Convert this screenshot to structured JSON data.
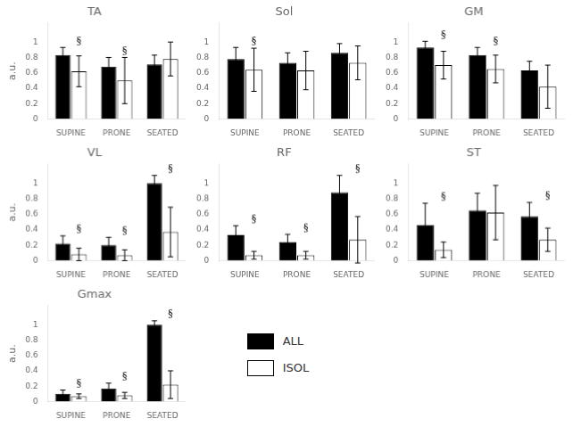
{
  "chart_data": [
    {
      "type": "bar",
      "title": "TA",
      "ylabel": "a.u.",
      "categories": [
        "SUPINE",
        "PRONE",
        "SEATED"
      ],
      "series": [
        {
          "name": "ALL",
          "color": "#000000",
          "values": [
            0.83,
            0.68,
            0.71
          ],
          "errors": [
            0.1,
            0.12,
            0.12
          ]
        },
        {
          "name": "ISOL",
          "color": "#ffffff",
          "values": [
            0.62,
            0.5,
            0.78
          ],
          "errors": [
            0.2,
            0.3,
            0.22
          ]
        }
      ],
      "annotations": [
        {
          "text": "§",
          "category": "SUPINE",
          "series": "ISOL"
        },
        {
          "text": "§",
          "category": "PRONE",
          "series": "ISOL"
        }
      ],
      "ylim": [
        0,
        1.25
      ],
      "yticks": [
        0,
        0.2,
        0.4,
        0.6,
        0.8,
        1
      ],
      "grid": false
    },
    {
      "type": "bar",
      "title": "Sol",
      "categories": [
        "SUPINE",
        "PRONE",
        "SEATED"
      ],
      "series": [
        {
          "name": "ALL",
          "color": "#000000",
          "values": [
            0.78,
            0.73,
            0.86
          ],
          "errors": [
            0.15,
            0.13,
            0.12
          ]
        },
        {
          "name": "ISOL",
          "color": "#ffffff",
          "values": [
            0.64,
            0.63,
            0.73
          ],
          "errors": [
            0.28,
            0.25,
            0.22
          ]
        }
      ],
      "annotations": [
        {
          "text": "§",
          "category": "SUPINE",
          "series": "ISOL"
        }
      ],
      "ylim": [
        0,
        1.25
      ],
      "yticks": [
        0,
        0.2,
        0.4,
        0.6,
        0.8,
        1
      ],
      "grid": false
    },
    {
      "type": "bar",
      "title": "GM",
      "categories": [
        "SUPINE",
        "PRONE",
        "SEATED"
      ],
      "series": [
        {
          "name": "ALL",
          "color": "#000000",
          "values": [
            0.93,
            0.83,
            0.63
          ],
          "errors": [
            0.08,
            0.1,
            0.12
          ]
        },
        {
          "name": "ISOL",
          "color": "#ffffff",
          "values": [
            0.7,
            0.65,
            0.42
          ],
          "errors": [
            0.18,
            0.18,
            0.28
          ]
        }
      ],
      "annotations": [
        {
          "text": "§",
          "category": "SUPINE",
          "series": "ISOL"
        },
        {
          "text": "§",
          "category": "PRONE",
          "series": "ISOL"
        }
      ],
      "ylim": [
        0,
        1.25
      ],
      "yticks": [
        0,
        0.2,
        0.4,
        0.6,
        0.8,
        1
      ],
      "grid": false
    },
    {
      "type": "bar",
      "title": "VL",
      "ylabel": "a.u.",
      "categories": [
        "SUPINE",
        "PRONE",
        "SEATED"
      ],
      "series": [
        {
          "name": "ALL",
          "color": "#000000",
          "values": [
            0.22,
            0.2,
            1.0
          ],
          "errors": [
            0.1,
            0.1,
            0.1
          ]
        },
        {
          "name": "ISOL",
          "color": "#ffffff",
          "values": [
            0.08,
            0.07,
            0.37
          ],
          "errors": [
            0.08,
            0.07,
            0.32
          ]
        }
      ],
      "annotations": [
        {
          "text": "§",
          "category": "SUPINE",
          "series": "ISOL"
        },
        {
          "text": "§",
          "category": "PRONE",
          "series": "ISOL"
        },
        {
          "text": "§",
          "category": "SEATED",
          "series": "ISOL"
        }
      ],
      "ylim": [
        0,
        1.25
      ],
      "yticks": [
        0,
        0.2,
        0.4,
        0.6,
        0.8,
        1
      ],
      "grid": false
    },
    {
      "type": "bar",
      "title": "RF",
      "categories": [
        "SUPINE",
        "PRONE",
        "SEATED"
      ],
      "series": [
        {
          "name": "ALL",
          "color": "#000000",
          "values": [
            0.33,
            0.24,
            0.88
          ],
          "errors": [
            0.12,
            0.1,
            0.22
          ]
        },
        {
          "name": "ISOL",
          "color": "#ffffff",
          "values": [
            0.07,
            0.07,
            0.27
          ],
          "errors": [
            0.05,
            0.05,
            0.3
          ]
        }
      ],
      "annotations": [
        {
          "text": "§",
          "category": "SUPINE",
          "series": "ISOL"
        },
        {
          "text": "§",
          "category": "PRONE",
          "series": "ISOL"
        },
        {
          "text": "§",
          "category": "SEATED",
          "series": "ISOL"
        }
      ],
      "ylim": [
        0,
        1.25
      ],
      "yticks": [
        0,
        0.2,
        0.4,
        0.6,
        0.8,
        1
      ],
      "grid": false
    },
    {
      "type": "bar",
      "title": "ST",
      "categories": [
        "SUPINE",
        "PRONE",
        "SEATED"
      ],
      "series": [
        {
          "name": "ALL",
          "color": "#000000",
          "values": [
            0.46,
            0.65,
            0.57
          ],
          "errors": [
            0.28,
            0.22,
            0.18
          ]
        },
        {
          "name": "ISOL",
          "color": "#ffffff",
          "values": [
            0.14,
            0.62,
            0.27
          ],
          "errors": [
            0.1,
            0.35,
            0.15
          ]
        }
      ],
      "annotations": [
        {
          "text": "§",
          "category": "SUPINE",
          "series": "ISOL"
        },
        {
          "text": "§",
          "category": "SEATED",
          "series": "ISOL"
        }
      ],
      "ylim": [
        0,
        1.25
      ],
      "yticks": [
        0,
        0.2,
        0.4,
        0.6,
        0.8,
        1
      ],
      "grid": false
    },
    {
      "type": "bar",
      "title": "Gmax",
      "ylabel": "a.u.",
      "categories": [
        "SUPINE",
        "PRONE",
        "SEATED"
      ],
      "series": [
        {
          "name": "ALL",
          "color": "#000000",
          "values": [
            0.1,
            0.17,
            1.0
          ],
          "errors": [
            0.05,
            0.07,
            0.05
          ]
        },
        {
          "name": "ISOL",
          "color": "#ffffff",
          "values": [
            0.07,
            0.08,
            0.22
          ],
          "errors": [
            0.03,
            0.04,
            0.18
          ]
        }
      ],
      "annotations": [
        {
          "text": "§",
          "category": "SUPINE",
          "series": "ISOL"
        },
        {
          "text": "§",
          "category": "PRONE",
          "series": "ISOL"
        },
        {
          "text": "§",
          "category": "SEATED",
          "series": "ISOL"
        }
      ],
      "ylim": [
        0,
        1.25
      ],
      "yticks": [
        0,
        0.2,
        0.4,
        0.6,
        0.8,
        1
      ],
      "grid": false
    }
  ]
}
